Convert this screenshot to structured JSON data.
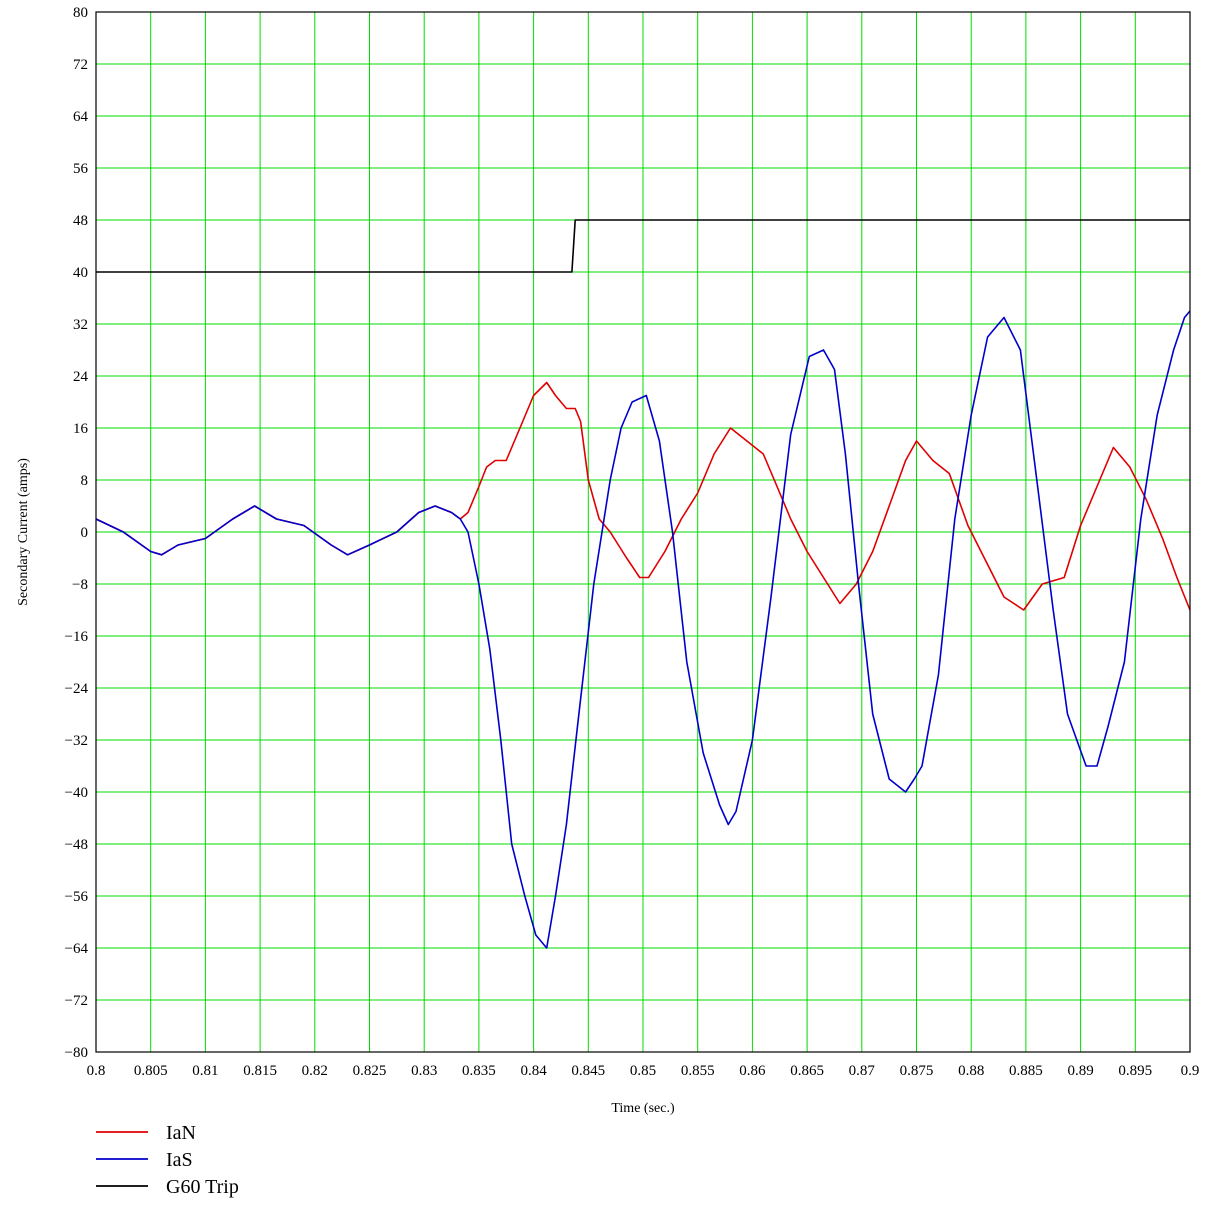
{
  "chart_data": {
    "type": "line",
    "title": "",
    "xlabel": "Time (sec.)",
    "ylabel": "Secondary Current (amps)",
    "xlim": [
      0.8,
      0.9
    ],
    "ylim": [
      -80,
      80
    ],
    "x_ticks": [
      0.8,
      0.805,
      0.81,
      0.815,
      0.82,
      0.825,
      0.83,
      0.835,
      0.84,
      0.845,
      0.85,
      0.855,
      0.86,
      0.865,
      0.87,
      0.875,
      0.88,
      0.885,
      0.89,
      0.895,
      0.9
    ],
    "x_tick_labels": [
      "0.8",
      "0.805",
      "0.81",
      "0.815",
      "0.82",
      "0.825",
      "0.83",
      "0.835",
      "0.84",
      "0.845",
      "0.85",
      "0.855",
      "0.86",
      "0.865",
      "0.87",
      "0.875",
      "0.88",
      "0.885",
      "0.89",
      "0.895",
      "0.9"
    ],
    "y_ticks": [
      80,
      72,
      64,
      56,
      48,
      40,
      32,
      24,
      16,
      8,
      0,
      -8,
      -16,
      -24,
      -32,
      -40,
      -48,
      -56,
      -64,
      -72,
      -80
    ],
    "y_tick_labels": [
      "80",
      "72",
      "64",
      "56",
      "48",
      "40",
      "32",
      "24",
      "16",
      "8",
      "0",
      "−8",
      "−16",
      "−24",
      "−32",
      "−40",
      "−48",
      "−56",
      "−64",
      "−72",
      "−80"
    ],
    "grid": true,
    "grid_color": "#00dd00",
    "legend_position": "bottom-left",
    "series": [
      {
        "name": "IaN",
        "color": "#e00000",
        "x": [
          0.8,
          0.8025,
          0.805,
          0.806,
          0.8075,
          0.81,
          0.8125,
          0.8145,
          0.8165,
          0.819,
          0.8215,
          0.823,
          0.825,
          0.8275,
          0.8295,
          0.831,
          0.8325,
          0.8333,
          0.834,
          0.835,
          0.8357,
          0.8365,
          0.8375,
          0.8385,
          0.84,
          0.8412,
          0.842,
          0.843,
          0.8438,
          0.8443,
          0.845,
          0.846,
          0.847,
          0.8485,
          0.8497,
          0.8505,
          0.852,
          0.8535,
          0.855,
          0.8565,
          0.858,
          0.8595,
          0.861,
          0.862,
          0.8635,
          0.865,
          0.8665,
          0.868,
          0.8695,
          0.871,
          0.8725,
          0.874,
          0.875,
          0.8765,
          0.878,
          0.8797,
          0.8815,
          0.883,
          0.8848,
          0.8865,
          0.8885,
          0.89,
          0.8915,
          0.893,
          0.8945,
          0.896,
          0.8975,
          0.8988,
          0.9
        ],
        "y": [
          2,
          0,
          -3,
          -3.5,
          -2,
          -1,
          2,
          4,
          2,
          1,
          -2,
          -3.5,
          -2,
          0,
          3,
          4,
          3,
          2,
          3,
          7,
          10,
          11,
          11,
          15,
          21,
          23,
          21,
          19,
          19,
          17,
          8,
          2,
          0,
          -4,
          -7,
          -7,
          -3,
          2,
          6,
          12,
          16,
          14,
          12,
          8,
          2,
          -3,
          -7,
          -11,
          -8,
          -3,
          4,
          11,
          14,
          11,
          9,
          1,
          -5,
          -10,
          -12,
          -8,
          -7,
          1,
          7,
          13,
          10,
          5,
          -1,
          -7,
          -12
        ]
      },
      {
        "name": "IaS",
        "color": "#0000cc",
        "x": [
          0.8,
          0.8025,
          0.805,
          0.806,
          0.8075,
          0.81,
          0.8125,
          0.8145,
          0.8165,
          0.819,
          0.8215,
          0.823,
          0.825,
          0.8275,
          0.8295,
          0.831,
          0.8325,
          0.8333,
          0.834,
          0.835,
          0.836,
          0.837,
          0.838,
          0.8392,
          0.8402,
          0.8412,
          0.842,
          0.843,
          0.844,
          0.8455,
          0.847,
          0.848,
          0.849,
          0.8503,
          0.8515,
          0.8527,
          0.854,
          0.8555,
          0.857,
          0.8578,
          0.8585,
          0.86,
          0.8617,
          0.8635,
          0.8652,
          0.8665,
          0.8675,
          0.8685,
          0.8697,
          0.871,
          0.8725,
          0.874,
          0.8748,
          0.8755,
          0.877,
          0.8785,
          0.88,
          0.8815,
          0.883,
          0.8845,
          0.886,
          0.8875,
          0.8888,
          0.8905,
          0.8915,
          0.8925,
          0.894,
          0.8955,
          0.897,
          0.8985,
          0.8995,
          0.9
        ],
        "y": [
          2,
          0,
          -3,
          -3.5,
          -2,
          -1,
          2,
          4,
          2,
          1,
          -2,
          -3.5,
          -2,
          0,
          3,
          4,
          3,
          2,
          0,
          -8,
          -18,
          -32,
          -48,
          -56,
          -62,
          -64,
          -56,
          -45,
          -30,
          -8,
          8,
          16,
          20,
          21,
          14,
          0,
          -20,
          -34,
          -42,
          -45,
          -43,
          -32,
          -10,
          15,
          27,
          28,
          25,
          12,
          -8,
          -28,
          -38,
          -40,
          -38,
          -36,
          -22,
          2,
          18,
          30,
          33,
          28,
          8,
          -12,
          -28,
          -36,
          -36,
          -30,
          -20,
          2,
          18,
          28,
          33,
          34
        ]
      },
      {
        "name": "G60 Trip",
        "color": "#000000",
        "x": [
          0.8,
          0.8435,
          0.8438,
          0.9
        ],
        "y": [
          40,
          40,
          48,
          48
        ]
      }
    ]
  }
}
